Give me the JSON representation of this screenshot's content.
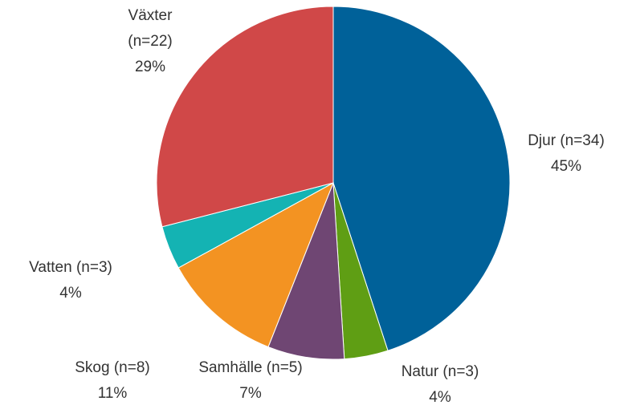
{
  "chart_data": {
    "type": "pie",
    "categories": [
      "Djur (n=34)",
      "Natur (n=3)",
      "Samhälle (n=5)",
      "Skog (n=8)",
      "Vatten (n=3)",
      "Växter (n=22)"
    ],
    "values": [
      45,
      4,
      7,
      11,
      4,
      29
    ],
    "value_labels": [
      "45%",
      "4%",
      "7%",
      "11%",
      "4%",
      "29%"
    ],
    "colors": [
      "#006199",
      "#5f9e14",
      "#6f4673",
      "#f39322",
      "#14b3b3",
      "#d04848"
    ]
  }
}
